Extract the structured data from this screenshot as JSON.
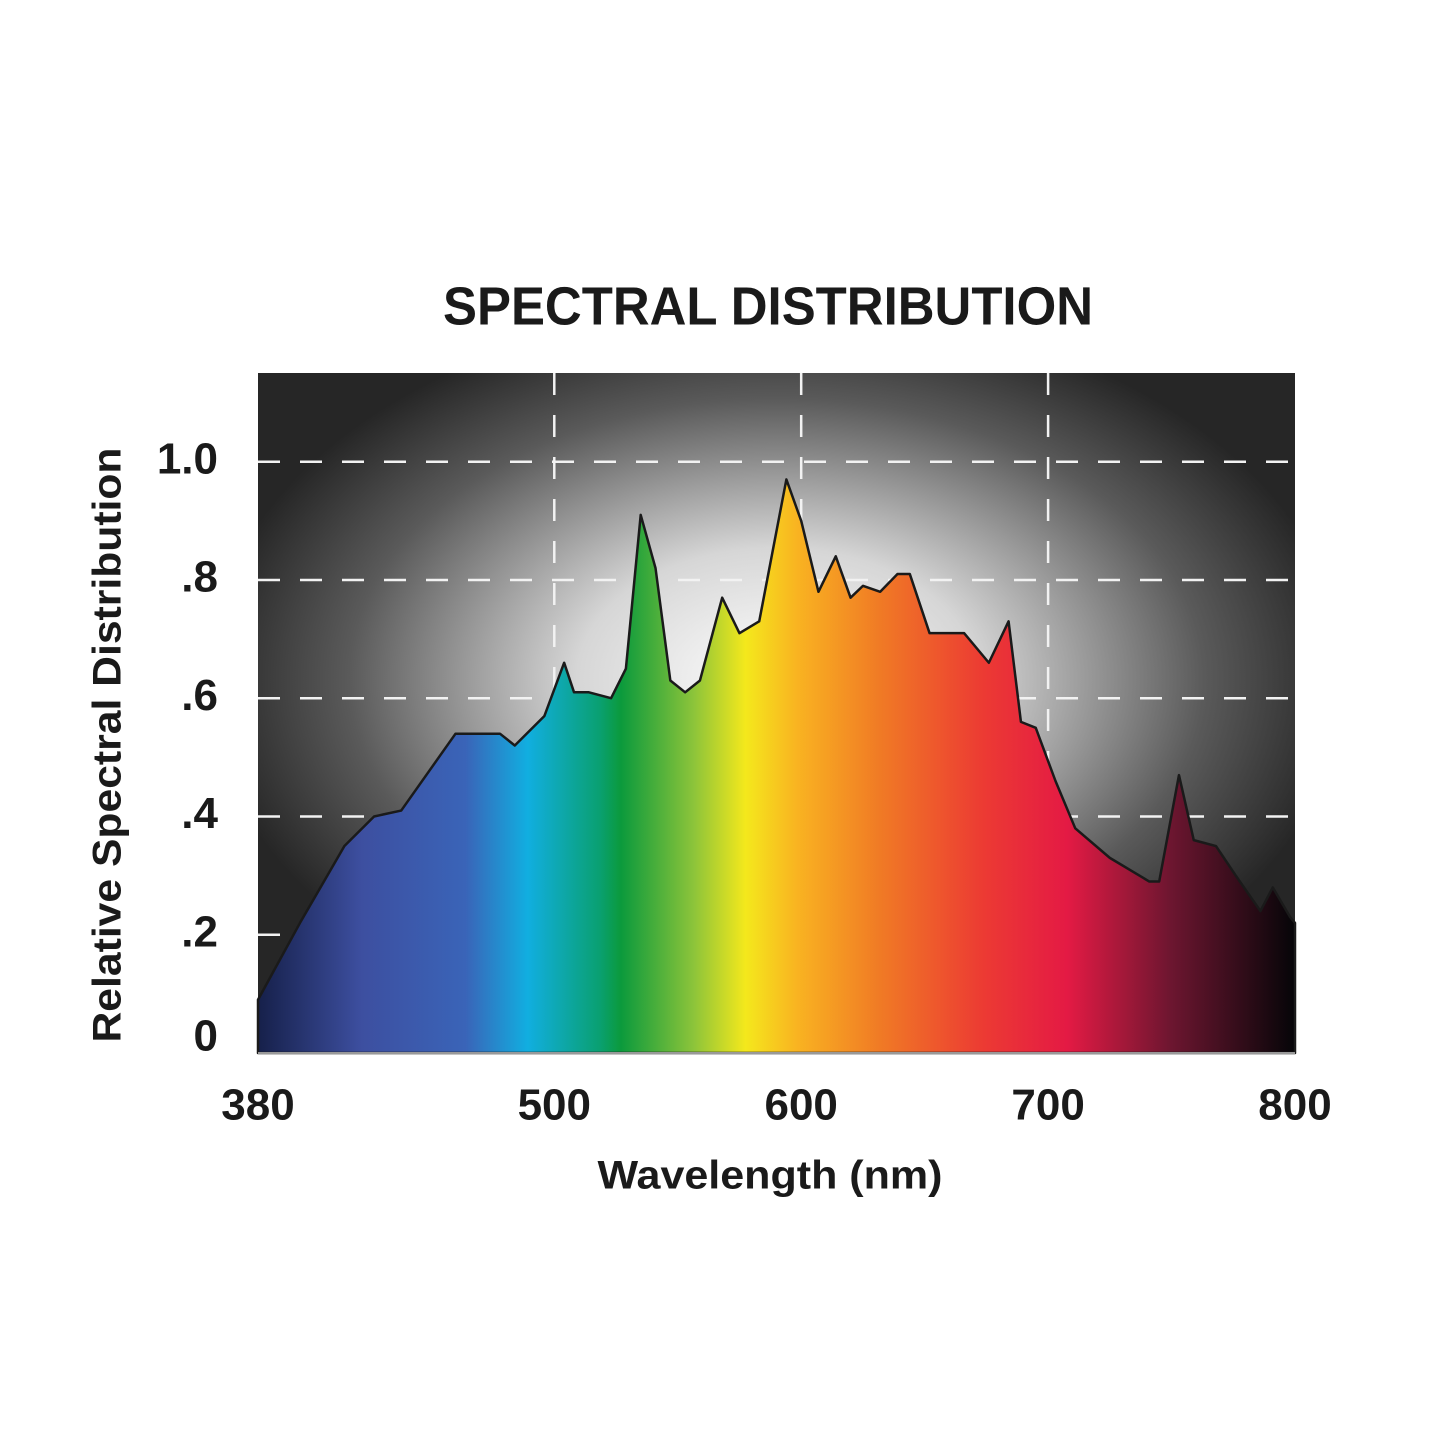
{
  "chart_data": {
    "type": "area",
    "title": "SPECTRAL DISTRIBUTION",
    "x_label": "Wavelength (nm)",
    "y_label": "Relative Spectral Distribution",
    "x": [
      380,
      397,
      415,
      427,
      438,
      460,
      478,
      484,
      496,
      504,
      508,
      514,
      523,
      529,
      535,
      541,
      547,
      553,
      559,
      568,
      575,
      583,
      594,
      600,
      607,
      614,
      620,
      625,
      632,
      639,
      644,
      652,
      666,
      676,
      684,
      689,
      695,
      703,
      711,
      725,
      741,
      745,
      753,
      759,
      768,
      776,
      786,
      791,
      798,
      800
    ],
    "values": [
      0.09,
      0.22,
      0.35,
      0.4,
      0.41,
      0.54,
      0.54,
      0.52,
      0.57,
      0.66,
      0.61,
      0.61,
      0.6,
      0.65,
      0.91,
      0.82,
      0.63,
      0.61,
      0.63,
      0.77,
      0.71,
      0.73,
      0.97,
      0.9,
      0.78,
      0.84,
      0.77,
      0.79,
      0.78,
      0.81,
      0.81,
      0.71,
      0.71,
      0.66,
      0.73,
      0.56,
      0.55,
      0.46,
      0.38,
      0.33,
      0.29,
      0.29,
      0.47,
      0.36,
      0.35,
      0.3,
      0.24,
      0.28,
      0.23,
      0.22
    ],
    "xlim": [
      380,
      800
    ],
    "xticks": [
      380,
      500,
      600,
      700,
      800
    ],
    "ylim": [
      0,
      1.15
    ],
    "yticks": [
      0,
      {
        "value": 0.2,
        "label": ".2"
      },
      {
        "value": 0.4,
        "label": ".4"
      },
      {
        "value": 0.6,
        "label": ".6"
      },
      {
        "value": 0.8,
        "label": ".8"
      },
      {
        "value": 1,
        "label": "1.0"
      }
    ],
    "grid": true
  }
}
